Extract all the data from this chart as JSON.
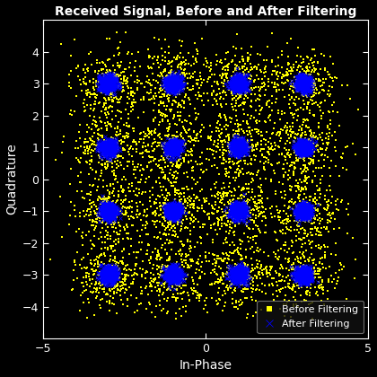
{
  "title": "Received Signal, Before and After Filtering",
  "xlabel": "In-Phase",
  "ylabel": "Quadrature",
  "xlim": [
    -5,
    5
  ],
  "ylim": [
    -5,
    5
  ],
  "bg_color": "black",
  "text_color": "white",
  "ax_color": "white",
  "constellation_points_i": [
    -3,
    -1,
    1,
    3
  ],
  "constellation_points_q": [
    -3,
    -1,
    1,
    3
  ],
  "noise_std_before": 0.55,
  "noise_std_after": 0.12,
  "n_points_per_symbol_before": 300,
  "n_points_per_symbol_after": 500,
  "before_color": "yellow",
  "after_color": "blue",
  "before_marker": "s",
  "after_marker": "x",
  "before_markersize": 1.5,
  "after_markersize": 2.5,
  "legend_facecolor": "#111111",
  "legend_edgecolor": "#888888",
  "seed": 42,
  "xticks": [
    -5,
    0,
    5
  ],
  "yticks": [
    -4,
    -3,
    -2,
    -1,
    0,
    1,
    2,
    3,
    4
  ],
  "title_fontsize": 10,
  "label_fontsize": 10,
  "tick_fontsize": 9
}
